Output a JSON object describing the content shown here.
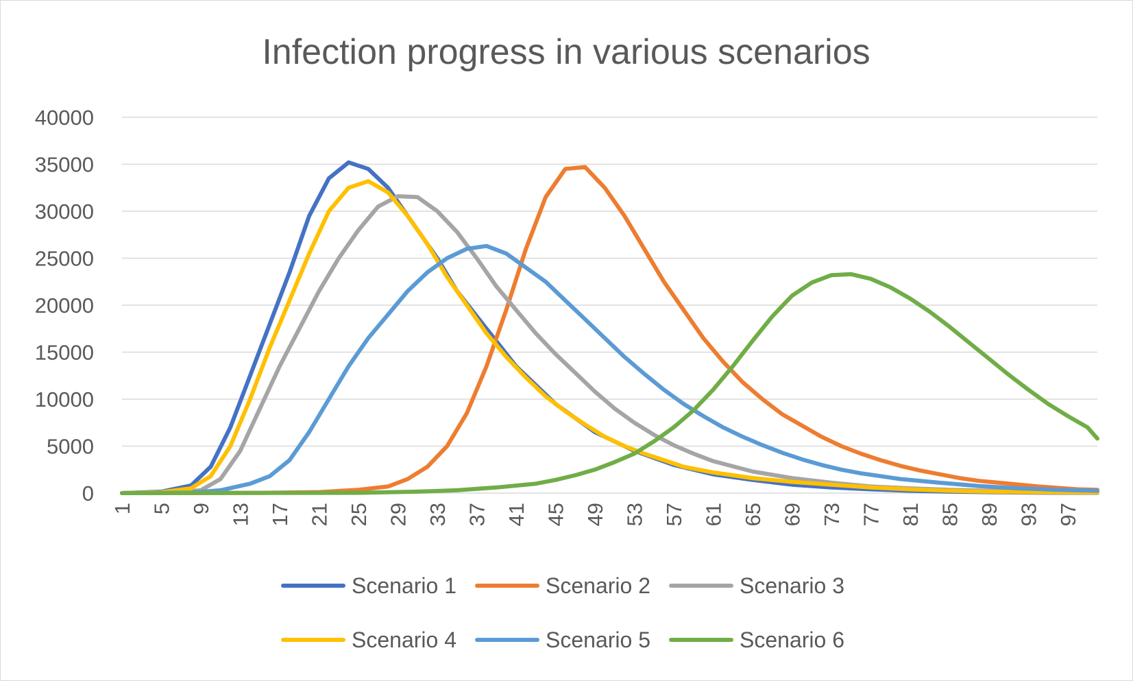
{
  "chart_data": {
    "type": "line",
    "title": "Infection progress in various scenarios",
    "xlabel": "",
    "ylabel": "",
    "x_range": [
      1,
      100
    ],
    "x_tick_labels": [
      "1",
      "5",
      "9",
      "13",
      "17",
      "21",
      "25",
      "29",
      "33",
      "37",
      "41",
      "45",
      "49",
      "53",
      "57",
      "61",
      "65",
      "69",
      "73",
      "77",
      "81",
      "85",
      "89",
      "93",
      "97"
    ],
    "ylim": [
      0,
      40000
    ],
    "y_ticks": [
      0,
      5000,
      10000,
      15000,
      20000,
      25000,
      30000,
      35000,
      40000
    ],
    "grid": true,
    "legend_position": "bottom",
    "series": [
      {
        "name": "Scenario 1",
        "color": "#4472c4",
        "points": [
          [
            1,
            0
          ],
          [
            5,
            150
          ],
          [
            8,
            800
          ],
          [
            10,
            2800
          ],
          [
            12,
            7000
          ],
          [
            14,
            12500
          ],
          [
            16,
            18000
          ],
          [
            18,
            23500
          ],
          [
            20,
            29500
          ],
          [
            22,
            33500
          ],
          [
            24,
            35200
          ],
          [
            26,
            34500
          ],
          [
            28,
            32500
          ],
          [
            30,
            29500
          ],
          [
            33,
            25000
          ],
          [
            35,
            21500
          ],
          [
            38,
            17500
          ],
          [
            41,
            13500
          ],
          [
            45,
            9500
          ],
          [
            49,
            6500
          ],
          [
            53,
            4500
          ],
          [
            57,
            3000
          ],
          [
            61,
            2000
          ],
          [
            65,
            1400
          ],
          [
            69,
            900
          ],
          [
            73,
            600
          ],
          [
            77,
            400
          ],
          [
            81,
            250
          ],
          [
            85,
            150
          ],
          [
            89,
            100
          ],
          [
            93,
            60
          ],
          [
            97,
            40
          ],
          [
            100,
            30
          ]
        ]
      },
      {
        "name": "Scenario 2",
        "color": "#ed7d31",
        "points": [
          [
            1,
            0
          ],
          [
            15,
            30
          ],
          [
            21,
            100
          ],
          [
            25,
            350
          ],
          [
            28,
            700
          ],
          [
            30,
            1500
          ],
          [
            32,
            2800
          ],
          [
            34,
            5000
          ],
          [
            36,
            8500
          ],
          [
            38,
            13500
          ],
          [
            40,
            19500
          ],
          [
            42,
            26000
          ],
          [
            44,
            31500
          ],
          [
            46,
            34500
          ],
          [
            48,
            34700
          ],
          [
            50,
            32500
          ],
          [
            52,
            29500
          ],
          [
            54,
            26000
          ],
          [
            56,
            22500
          ],
          [
            58,
            19500
          ],
          [
            60,
            16500
          ],
          [
            62,
            14000
          ],
          [
            64,
            11800
          ],
          [
            66,
            10000
          ],
          [
            68,
            8400
          ],
          [
            70,
            7200
          ],
          [
            72,
            6000
          ],
          [
            74,
            5000
          ],
          [
            76,
            4200
          ],
          [
            78,
            3500
          ],
          [
            80,
            2900
          ],
          [
            82,
            2400
          ],
          [
            84,
            2000
          ],
          [
            86,
            1600
          ],
          [
            88,
            1300
          ],
          [
            90,
            1100
          ],
          [
            94,
            700
          ],
          [
            98,
            400
          ],
          [
            100,
            350
          ]
        ]
      },
      {
        "name": "Scenario 3",
        "color": "#a5a5a5",
        "points": [
          [
            1,
            0
          ],
          [
            6,
            50
          ],
          [
            9,
            300
          ],
          [
            11,
            1500
          ],
          [
            13,
            4500
          ],
          [
            15,
            9000
          ],
          [
            17,
            13500
          ],
          [
            19,
            17500
          ],
          [
            21,
            21500
          ],
          [
            23,
            25000
          ],
          [
            25,
            28000
          ],
          [
            27,
            30500
          ],
          [
            29,
            31600
          ],
          [
            31,
            31500
          ],
          [
            33,
            30000
          ],
          [
            35,
            27800
          ],
          [
            37,
            25000
          ],
          [
            39,
            22000
          ],
          [
            41,
            19500
          ],
          [
            43,
            17000
          ],
          [
            45,
            14800
          ],
          [
            47,
            12800
          ],
          [
            49,
            10800
          ],
          [
            51,
            9000
          ],
          [
            53,
            7500
          ],
          [
            55,
            6200
          ],
          [
            57,
            5100
          ],
          [
            59,
            4200
          ],
          [
            61,
            3400
          ],
          [
            65,
            2300
          ],
          [
            69,
            1600
          ],
          [
            73,
            1100
          ],
          [
            77,
            700
          ],
          [
            81,
            500
          ],
          [
            85,
            350
          ],
          [
            89,
            250
          ],
          [
            93,
            180
          ],
          [
            97,
            130
          ],
          [
            100,
            100
          ]
        ]
      },
      {
        "name": "Scenario 4",
        "color": "#ffc000",
        "points": [
          [
            1,
            0
          ],
          [
            5,
            100
          ],
          [
            8,
            500
          ],
          [
            10,
            1800
          ],
          [
            12,
            5000
          ],
          [
            14,
            10000
          ],
          [
            16,
            15500
          ],
          [
            18,
            20500
          ],
          [
            20,
            25500
          ],
          [
            22,
            30000
          ],
          [
            24,
            32500
          ],
          [
            26,
            33200
          ],
          [
            28,
            32000
          ],
          [
            30,
            29500
          ],
          [
            32,
            26500
          ],
          [
            34,
            23000
          ],
          [
            36,
            20000
          ],
          [
            38,
            17000
          ],
          [
            40,
            14500
          ],
          [
            42,
            12300
          ],
          [
            44,
            10300
          ],
          [
            46,
            8700
          ],
          [
            48,
            7300
          ],
          [
            50,
            6000
          ],
          [
            52,
            5000
          ],
          [
            54,
            4200
          ],
          [
            56,
            3500
          ],
          [
            58,
            2800
          ],
          [
            61,
            2200
          ],
          [
            65,
            1600
          ],
          [
            69,
            1200
          ],
          [
            73,
            900
          ],
          [
            77,
            600
          ],
          [
            81,
            400
          ],
          [
            85,
            250
          ],
          [
            89,
            150
          ],
          [
            93,
            100
          ],
          [
            97,
            70
          ],
          [
            100,
            50
          ]
        ]
      },
      {
        "name": "Scenario 5",
        "color": "#5b9bd5",
        "points": [
          [
            1,
            0
          ],
          [
            8,
            50
          ],
          [
            11,
            300
          ],
          [
            14,
            1000
          ],
          [
            16,
            1800
          ],
          [
            18,
            3500
          ],
          [
            20,
            6500
          ],
          [
            22,
            10000
          ],
          [
            24,
            13500
          ],
          [
            26,
            16500
          ],
          [
            28,
            19000
          ],
          [
            30,
            21500
          ],
          [
            32,
            23500
          ],
          [
            34,
            25000
          ],
          [
            36,
            26000
          ],
          [
            38,
            26300
          ],
          [
            40,
            25500
          ],
          [
            42,
            24000
          ],
          [
            44,
            22500
          ],
          [
            46,
            20500
          ],
          [
            48,
            18500
          ],
          [
            50,
            16500
          ],
          [
            52,
            14500
          ],
          [
            54,
            12700
          ],
          [
            56,
            11000
          ],
          [
            58,
            9500
          ],
          [
            60,
            8200
          ],
          [
            62,
            7000
          ],
          [
            64,
            6000
          ],
          [
            66,
            5100
          ],
          [
            68,
            4300
          ],
          [
            70,
            3600
          ],
          [
            72,
            3000
          ],
          [
            74,
            2500
          ],
          [
            76,
            2100
          ],
          [
            78,
            1800
          ],
          [
            80,
            1500
          ],
          [
            84,
            1100
          ],
          [
            88,
            750
          ],
          [
            92,
            500
          ],
          [
            96,
            350
          ],
          [
            100,
            250
          ]
        ]
      },
      {
        "name": "Scenario 6",
        "color": "#70ad47",
        "points": [
          [
            1,
            0
          ],
          [
            25,
            30
          ],
          [
            31,
            150
          ],
          [
            35,
            300
          ],
          [
            39,
            600
          ],
          [
            43,
            1000
          ],
          [
            45,
            1400
          ],
          [
            47,
            1900
          ],
          [
            49,
            2500
          ],
          [
            51,
            3300
          ],
          [
            53,
            4200
          ],
          [
            55,
            5500
          ],
          [
            57,
            7000
          ],
          [
            59,
            8800
          ],
          [
            61,
            11000
          ],
          [
            63,
            13500
          ],
          [
            65,
            16200
          ],
          [
            67,
            18800
          ],
          [
            69,
            21000
          ],
          [
            71,
            22400
          ],
          [
            73,
            23200
          ],
          [
            75,
            23300
          ],
          [
            77,
            22800
          ],
          [
            79,
            21900
          ],
          [
            81,
            20700
          ],
          [
            83,
            19300
          ],
          [
            85,
            17700
          ],
          [
            87,
            16000
          ],
          [
            89,
            14300
          ],
          [
            91,
            12600
          ],
          [
            93,
            11000
          ],
          [
            95,
            9500
          ],
          [
            97,
            8200
          ],
          [
            99,
            7000
          ],
          [
            100,
            5800
          ]
        ]
      }
    ]
  }
}
